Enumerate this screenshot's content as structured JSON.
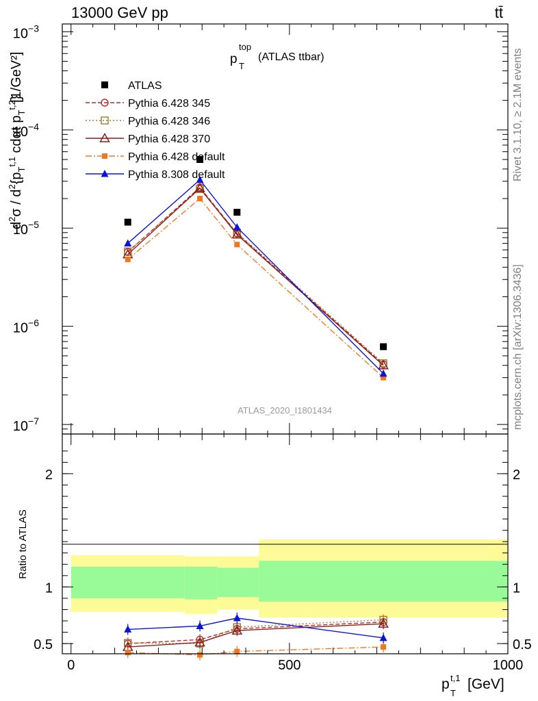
{
  "header": {
    "energy_label": "13000 GeV pp",
    "process_label": "tt̄"
  },
  "side_labels": {
    "rivet": "Rivet 3.1.10, ≥ 2.1M events",
    "mcplots": "mcplots.cern.ch [arXiv:1306.3436]"
  },
  "watermark": "ATLAS_2020_I1801434",
  "chart_data": [
    {
      "type": "line",
      "title_main": "p",
      "title_sup": "top",
      "title_sub": "T",
      "title_suffix": "(ATLAS ttbar)",
      "ylabel": "d²σ/d²{p_T^{t,1} cdαt p_T^{t,2}} · 1/σ [1/GeV²]",
      "ylabel_unit": "[1/GeV²]",
      "yscale": "log",
      "ylim": [
        8e-08,
        0.0012
      ],
      "xlim": [
        -20,
        1000
      ],
      "yticks": [
        {
          "value": 1e-07,
          "base": "10",
          "exp": "−7"
        },
        {
          "value": 1e-06,
          "base": "10",
          "exp": "−6"
        },
        {
          "value": 1e-05,
          "base": "10",
          "exp": "−5"
        },
        {
          "value": 0.0001,
          "base": "10",
          "exp": "−4"
        },
        {
          "value": 0.001,
          "base": "10",
          "exp": "−3"
        }
      ],
      "legend_position": "top-left",
      "x": [
        130,
        295,
        380,
        715
      ],
      "series": [
        {
          "name": "ATLAS",
          "kind": "data",
          "color": "#000000",
          "values": [
            1.15e-05,
            5e-05,
            1.45e-05,
            6.2e-07
          ]
        },
        {
          "name": "Pythia 6.428 345",
          "color": "#b22a2a",
          "marker": "circle-open",
          "dash": "6,3",
          "values": [
            5.7e-06,
            2.6e-05,
            8.8e-06,
            4.1e-07
          ]
        },
        {
          "name": "Pythia 6.428 346",
          "color": "#a0782a",
          "marker": "square-open",
          "dash": "2,3",
          "values": [
            5.8e-06,
            2.5e-05,
            9e-06,
            4.2e-07
          ]
        },
        {
          "name": "Pythia 6.428 370",
          "color": "#8b1c1c",
          "marker": "triangle-open",
          "dash": "",
          "values": [
            5.4e-06,
            2.55e-05,
            8.6e-06,
            4e-07
          ]
        },
        {
          "name": "Pythia 6.428 default",
          "color": "#f07820",
          "marker": "square-filled",
          "dash": "9,3,2,3",
          "values": [
            4.8e-06,
            2e-05,
            6.8e-06,
            3e-07
          ]
        },
        {
          "name": "Pythia 8.308 default",
          "color": "#0a14d8",
          "marker": "triangle-filled",
          "dash": "",
          "values": [
            7e-06,
            3.1e-05,
            1.02e-05,
            3.3e-07
          ]
        }
      ]
    },
    {
      "type": "line",
      "ylabel": "Ratio to ATLAS",
      "xlabel_main": "p",
      "xlabel_sup": "t,1",
      "xlabel_sub": "T",
      "xlabel_unit": "[GeV]",
      "ylim": [
        0.41,
        2.35
      ],
      "xlim": [
        -20,
        1000
      ],
      "xticks": [
        "0",
        "500",
        "1000"
      ],
      "yticks": [
        "0.5",
        "1",
        "2"
      ],
      "bins": [
        [
          0,
          260
        ],
        [
          260,
          335
        ],
        [
          335,
          430
        ],
        [
          430,
          1000
        ]
      ],
      "yellow_band": [
        [
          0.78,
          1.28
        ],
        [
          0.76,
          1.27
        ],
        [
          0.8,
          1.27
        ],
        [
          0.73,
          1.42
        ]
      ],
      "green_band": [
        [
          0.9,
          1.18
        ],
        [
          0.89,
          1.18
        ],
        [
          0.91,
          1.17
        ],
        [
          0.87,
          1.23
        ]
      ],
      "x": [
        130,
        295,
        380,
        715
      ],
      "series": [
        {
          "name": "Pythia 6.428 345",
          "color": "#b22a2a",
          "marker": "circle-open",
          "dash": "6,3",
          "values": [
            0.5,
            0.535,
            0.63,
            0.69
          ]
        },
        {
          "name": "Pythia 6.428 346",
          "color": "#a0782a",
          "marker": "square-open",
          "dash": "2,3",
          "values": [
            0.505,
            0.5,
            0.645,
            0.71
          ]
        },
        {
          "name": "Pythia 6.428 370",
          "color": "#8b1c1c",
          "marker": "triangle-open",
          "dash": "",
          "values": [
            0.47,
            0.51,
            0.615,
            0.675
          ]
        },
        {
          "name": "Pythia 6.428 default",
          "color": "#f07820",
          "marker": "square-filled",
          "dash": "9,3,2,3",
          "values": [
            0.42,
            0.4,
            0.43,
            0.47
          ]
        },
        {
          "name": "Pythia 8.308 default",
          "color": "#0a14d8",
          "marker": "triangle-filled",
          "dash": "",
          "values": [
            0.625,
            0.655,
            0.725,
            0.55
          ]
        }
      ]
    }
  ]
}
